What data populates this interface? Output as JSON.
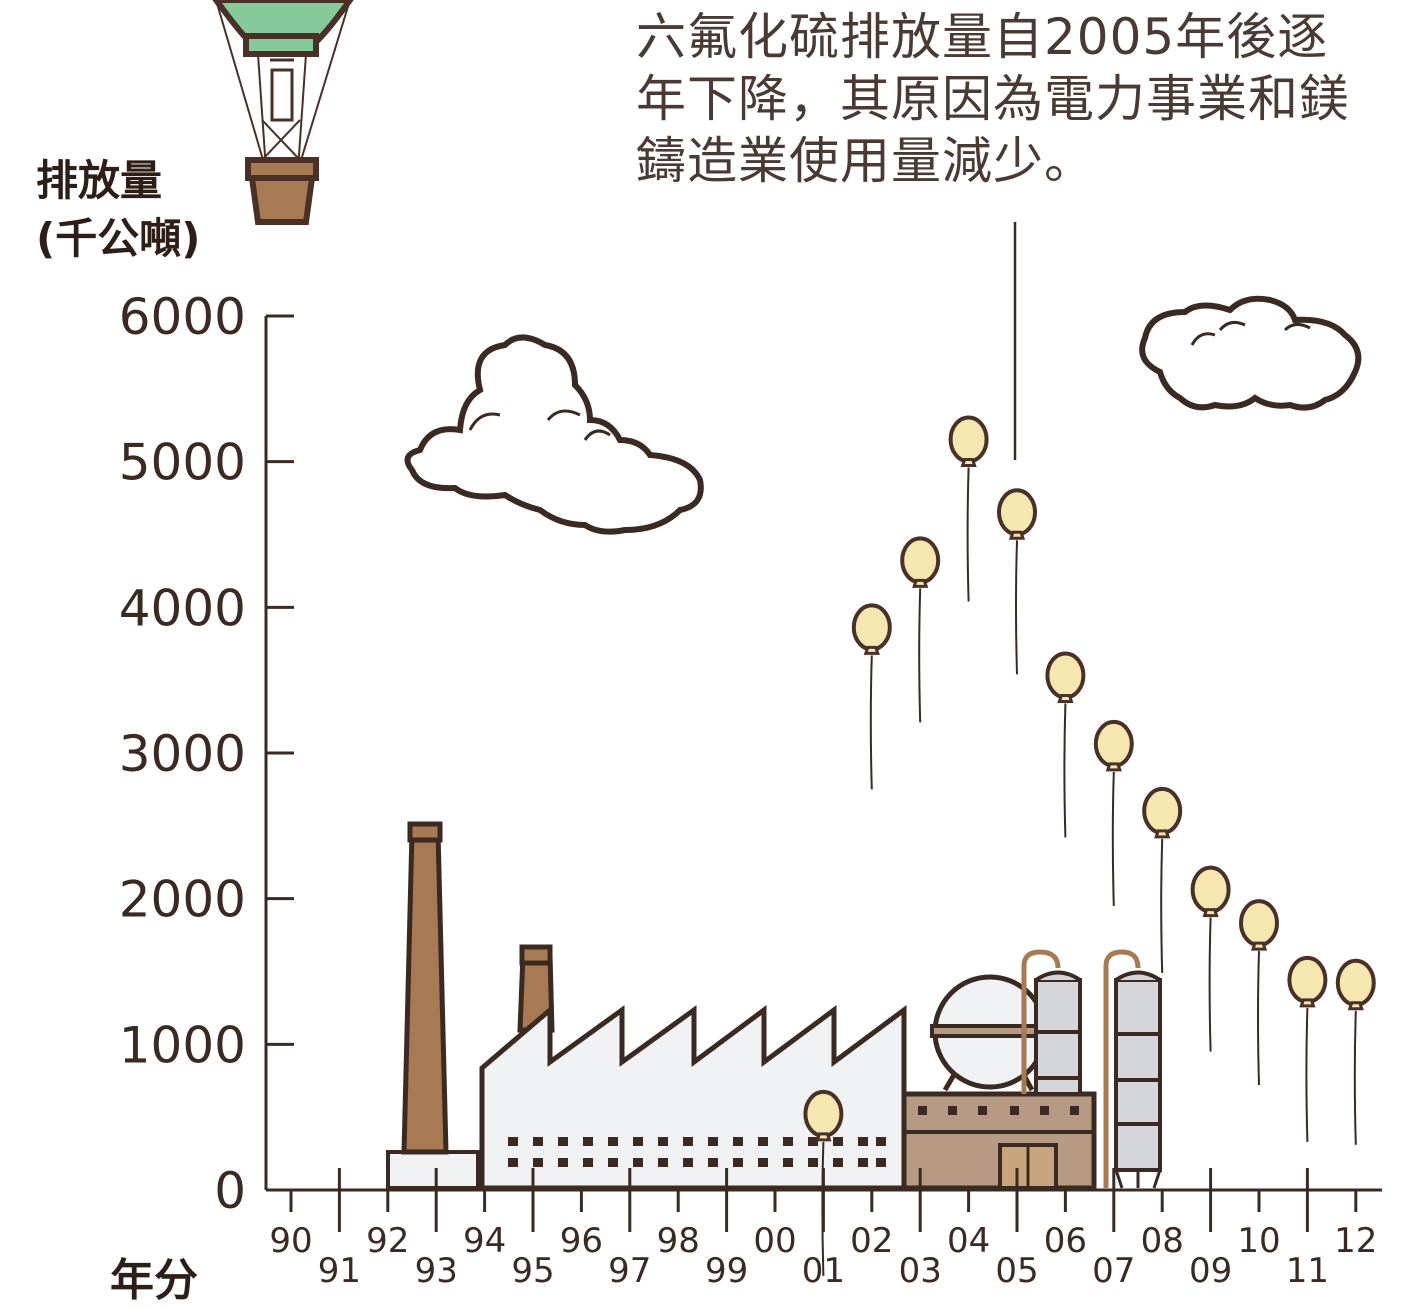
{
  "annotation": "六氟化硫排放量自2005年後逐年下降，其原因為電力事業和鎂鑄造業使用量減少。",
  "y_axis_label": {
    "line1": "排放量",
    "line2": "(千公噸)"
  },
  "x_axis_label": "年分",
  "colors": {
    "ink": "#3b2a22",
    "balloon_fill": "#f6e7b1",
    "balloon_stroke": "#4a3128",
    "chimney": "#a87a53",
    "factory_fill": "#f1f2f4",
    "building_fill": "#b79a83",
    "tank_fill": "#d5d6d9",
    "air_balloon_green": "#86c99a",
    "air_balloon_basket": "#a87a53"
  },
  "chart_data": {
    "type": "scatter",
    "title": "",
    "ylabel": "排放量 (千公噸)",
    "xlabel": "年分",
    "ylim": [
      0,
      6000
    ],
    "yticks": [
      0,
      1000,
      2000,
      3000,
      4000,
      5000,
      6000
    ],
    "x": [
      "90",
      "91",
      "92",
      "93",
      "94",
      "95",
      "96",
      "97",
      "98",
      "99",
      "00",
      "01",
      "02",
      "03",
      "04",
      "05",
      "06",
      "07",
      "08",
      "09",
      "10",
      "11",
      "12"
    ],
    "series": [
      {
        "points": [
          {
            "x": "01",
            "y": 440
          },
          {
            "x": "02",
            "y": 3780
          },
          {
            "x": "03",
            "y": 4240
          },
          {
            "x": "04",
            "y": 5070
          },
          {
            "x": "05",
            "y": 4570
          },
          {
            "x": "06",
            "y": 3450
          },
          {
            "x": "07",
            "y": 2980
          },
          {
            "x": "08",
            "y": 2520
          },
          {
            "x": "09",
            "y": 1980
          },
          {
            "x": "10",
            "y": 1750
          },
          {
            "x": "11",
            "y": 1360
          },
          {
            "x": "12",
            "y": 1340
          }
        ]
      }
    ],
    "grid": false,
    "legend": "none"
  }
}
